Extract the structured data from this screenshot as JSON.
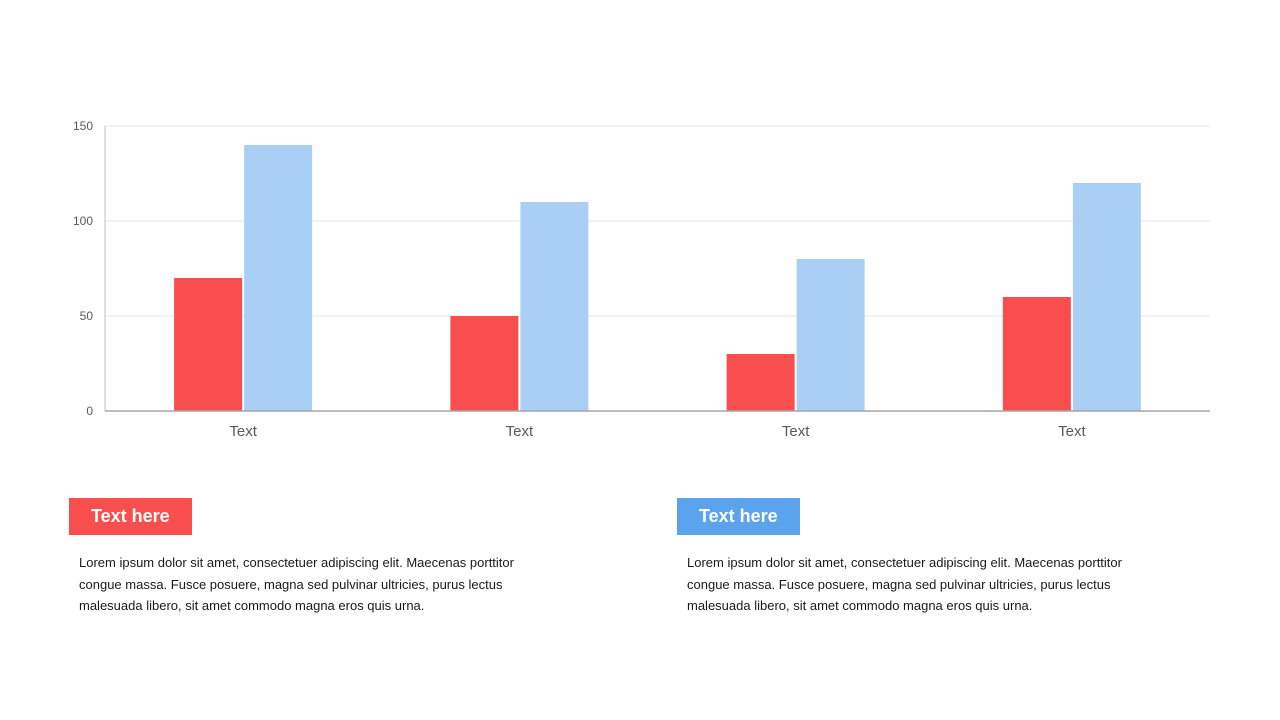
{
  "chart_data": {
    "type": "bar",
    "categories": [
      "Text",
      "Text",
      "Text",
      "Text"
    ],
    "series": [
      {
        "values": [
          70,
          50,
          30,
          60
        ],
        "color": "#f94e4e"
      },
      {
        "values": [
          140,
          110,
          80,
          120
        ],
        "color": "#aacff4"
      }
    ],
    "yticks": [
      0,
      50,
      100,
      150
    ],
    "ylim": [
      0,
      150
    ],
    "grid": true,
    "legend": "none"
  },
  "panels": [
    {
      "tag": "Text here",
      "tag_color": "#f94e4e",
      "text": "Lorem ipsum dolor sit amet, consectetuer adipiscing elit. Maecenas porttitor congue massa. Fusce posuere, magna sed pulvinar ultricies, purus lectus malesuada libero, sit amet commodo magna eros quis urna."
    },
    {
      "tag": "Text here",
      "tag_color": "#5ba4ed",
      "text": "Lorem ipsum dolor sit amet, consectetuer adipiscing elit. Maecenas porttitor congue massa. Fusce posuere, magna sed pulvinar ultricies, purus lectus malesuada libero, sit amet commodo magna eros quis urna."
    }
  ]
}
